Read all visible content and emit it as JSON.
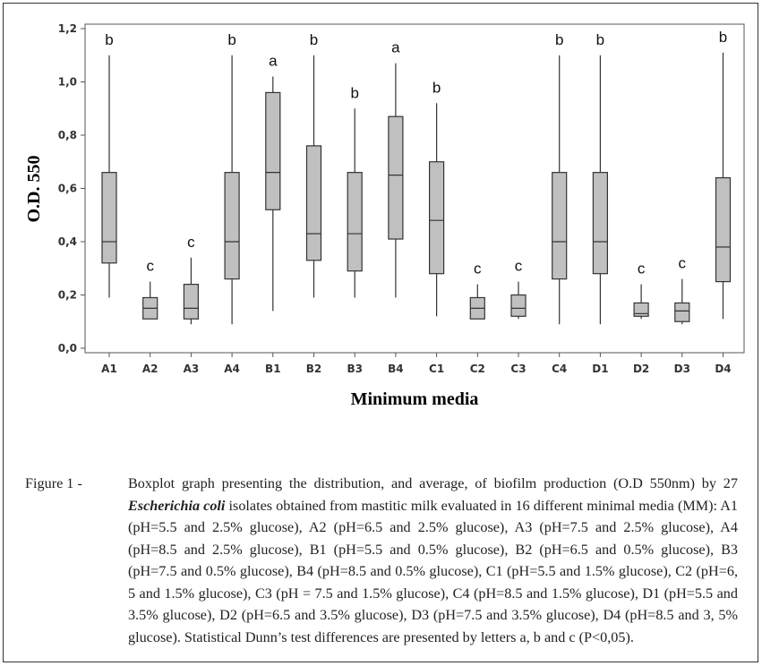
{
  "chart_data": {
    "type": "boxplot",
    "xlabel": "Minimum media",
    "ylabel": "O.D. 550",
    "ylim": [
      0.0,
      1.2
    ],
    "yticks": [
      "0,0",
      "0,2",
      "0,4",
      "0,6",
      "0,8",
      "1,0",
      "1,2"
    ],
    "yticks_values": [
      0.0,
      0.2,
      0.4,
      0.6,
      0.8,
      1.0,
      1.2
    ],
    "categories": [
      "A1",
      "A2",
      "A3",
      "A4",
      "B1",
      "B2",
      "B3",
      "B4",
      "C1",
      "C2",
      "C3",
      "C4",
      "D1",
      "D2",
      "D3",
      "D4"
    ],
    "boxes": [
      {
        "category": "A1",
        "min": 0.19,
        "q1": 0.32,
        "median": 0.4,
        "q3": 0.66,
        "max": 1.1,
        "letter": "b"
      },
      {
        "category": "A2",
        "min": 0.11,
        "q1": 0.11,
        "median": 0.15,
        "q3": 0.19,
        "max": 0.25,
        "letter": "c"
      },
      {
        "category": "A3",
        "min": 0.09,
        "q1": 0.11,
        "median": 0.15,
        "q3": 0.24,
        "max": 0.34,
        "letter": "c"
      },
      {
        "category": "A4",
        "min": 0.09,
        "q1": 0.26,
        "median": 0.4,
        "q3": 0.66,
        "max": 1.1,
        "letter": "b"
      },
      {
        "category": "B1",
        "min": 0.14,
        "q1": 0.52,
        "median": 0.66,
        "q3": 0.96,
        "max": 1.02,
        "letter": "a"
      },
      {
        "category": "B2",
        "min": 0.19,
        "q1": 0.33,
        "median": 0.43,
        "q3": 0.76,
        "max": 1.1,
        "letter": "b"
      },
      {
        "category": "B3",
        "min": 0.19,
        "q1": 0.29,
        "median": 0.43,
        "q3": 0.66,
        "max": 0.9,
        "letter": "b"
      },
      {
        "category": "B4",
        "min": 0.19,
        "q1": 0.41,
        "median": 0.65,
        "q3": 0.87,
        "max": 1.07,
        "letter": "a"
      },
      {
        "category": "C1",
        "min": 0.12,
        "q1": 0.28,
        "median": 0.48,
        "q3": 0.7,
        "max": 0.92,
        "letter": "b"
      },
      {
        "category": "C2",
        "min": 0.11,
        "q1": 0.11,
        "median": 0.15,
        "q3": 0.19,
        "max": 0.24,
        "letter": "c"
      },
      {
        "category": "C3",
        "min": 0.11,
        "q1": 0.12,
        "median": 0.15,
        "q3": 0.2,
        "max": 0.25,
        "letter": "c"
      },
      {
        "category": "C4",
        "min": 0.09,
        "q1": 0.26,
        "median": 0.4,
        "q3": 0.66,
        "max": 1.1,
        "letter": "b"
      },
      {
        "category": "D1",
        "min": 0.09,
        "q1": 0.28,
        "median": 0.4,
        "q3": 0.66,
        "max": 1.1,
        "letter": "b"
      },
      {
        "category": "D2",
        "min": 0.11,
        "q1": 0.12,
        "median": 0.13,
        "q3": 0.17,
        "max": 0.24,
        "letter": "c"
      },
      {
        "category": "D3",
        "min": 0.09,
        "q1": 0.1,
        "median": 0.14,
        "q3": 0.17,
        "max": 0.26,
        "letter": "c"
      },
      {
        "category": "D4",
        "min": 0.11,
        "q1": 0.25,
        "median": 0.38,
        "q3": 0.64,
        "max": 1.11,
        "letter": "b"
      }
    ],
    "grid": false,
    "box_fill": "#c0c0c0",
    "box_stroke": "#333333"
  },
  "caption": {
    "label": "Figure 1 -",
    "text_before_emphasis": "Boxplot graph presenting the distribution, and average, of biofilm production (O.D 550nm) by 27",
    "emphasis": "Escherichia coli",
    "text_after_emphasis": "isolates obtained from mastitic milk evaluated in 16 different minimal media (MM): A1 (pH=5.5 and 2.5% glucose), A2 (pH=6.5 and 2.5% glucose), A3 (pH=7.5 and 2.5% glucose), A4 (pH=8.5 and 2.5% glucose), B1 (pH=5.5 and 0.5% glucose), B2 (pH=6.5 and 0.5% glucose), B3 (pH=7.5 and 0.5% glucose), B4 (pH=8.5 and 0.5% glucose), C1 (pH=5.5 and 1.5% glucose), C2 (pH=6, 5 and 1.5% glucose), C3 (pH = 7.5 and 1.5% glucose), C4 (pH=8.5 and 1.5% glucose), D1 (pH=5.5 and 3.5% glucose), D2 (pH=6.5 and 3.5% glucose), D3 (pH=7.5 and 3.5% glucose), D4 (pH=8.5 and 3, 5% glucose). Statistical Dunn’s test differences are presented by letters a, b and c (P<0,05)."
  }
}
